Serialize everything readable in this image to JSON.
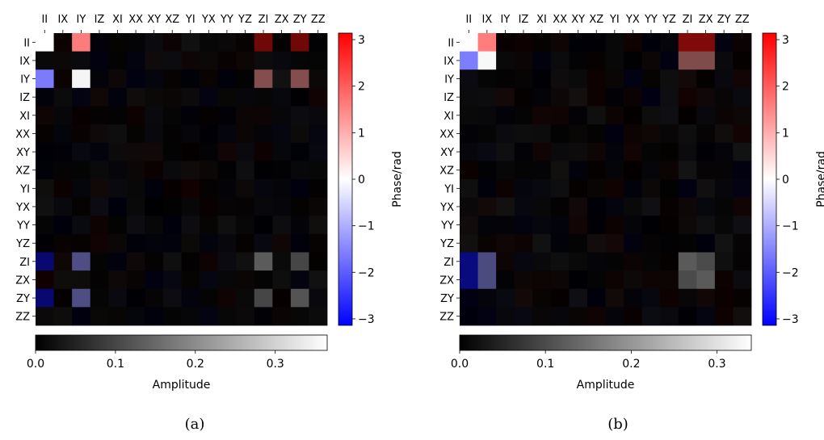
{
  "labels": [
    "II",
    "IX",
    "IY",
    "IZ",
    "XI",
    "XX",
    "XY",
    "XZ",
    "YI",
    "YX",
    "YY",
    "YZ",
    "ZI",
    "ZX",
    "ZY",
    "ZZ"
  ],
  "colorbars": {
    "phase_label": "Phase/rad",
    "phase_ticks": [
      "3",
      "2",
      "1",
      "0",
      "−1",
      "−2",
      "−3"
    ],
    "amplitude_label": "Amplitude"
  },
  "chart_data": [
    {
      "type": "heatmap",
      "panel_label": "(a)",
      "amp_ticks": [
        "0.0",
        "0.1",
        "0.2",
        "0.3"
      ],
      "amp_max": 0.365,
      "phase_range": [
        -3.14,
        3.14
      ],
      "background_amplitude": 0.015,
      "cells": [
        {
          "r": 0,
          "c": 0,
          "amp": 0.365,
          "phase": 0.0
        },
        {
          "r": 0,
          "c": 2,
          "amp": 0.36,
          "phase": 1.6
        },
        {
          "r": 0,
          "c": 12,
          "amp": 0.16,
          "phase": 2.9
        },
        {
          "r": 0,
          "c": 14,
          "amp": 0.16,
          "phase": 2.9
        },
        {
          "r": 2,
          "c": 0,
          "amp": 0.36,
          "phase": -1.6
        },
        {
          "r": 2,
          "c": 2,
          "amp": 0.35,
          "phase": 0.0
        },
        {
          "r": 2,
          "c": 12,
          "amp": 0.19,
          "phase": 1.3
        },
        {
          "r": 2,
          "c": 14,
          "amp": 0.19,
          "phase": 1.3
        },
        {
          "r": 12,
          "c": 0,
          "amp": 0.16,
          "phase": -2.9
        },
        {
          "r": 12,
          "c": 2,
          "amp": 0.19,
          "phase": -1.3
        },
        {
          "r": 12,
          "c": 12,
          "amp": 0.13,
          "phase": 0.0
        },
        {
          "r": 12,
          "c": 14,
          "amp": 0.1,
          "phase": 0.0
        },
        {
          "r": 14,
          "c": 0,
          "amp": 0.16,
          "phase": -2.9
        },
        {
          "r": 14,
          "c": 2,
          "amp": 0.19,
          "phase": -1.3
        },
        {
          "r": 14,
          "c": 12,
          "amp": 0.1,
          "phase": 0.0
        },
        {
          "r": 14,
          "c": 14,
          "amp": 0.12,
          "phase": 0.0
        }
      ]
    },
    {
      "type": "heatmap",
      "panel_label": "(b)",
      "amp_ticks": [
        "0.0",
        "0.1",
        "0.2",
        "0.3"
      ],
      "amp_max": 0.34,
      "phase_range": [
        -3.14,
        3.14
      ],
      "background_amplitude": 0.015,
      "cells": [
        {
          "r": 0,
          "c": 0,
          "amp": 0.34,
          "phase": 0.0
        },
        {
          "r": 0,
          "c": 1,
          "amp": 0.34,
          "phase": 1.6
        },
        {
          "r": 0,
          "c": 12,
          "amp": 0.17,
          "phase": 2.9
        },
        {
          "r": 0,
          "c": 13,
          "amp": 0.17,
          "phase": 2.9
        },
        {
          "r": 1,
          "c": 0,
          "amp": 0.34,
          "phase": -1.6
        },
        {
          "r": 1,
          "c": 1,
          "amp": 0.33,
          "phase": 0.0
        },
        {
          "r": 1,
          "c": 12,
          "amp": 0.17,
          "phase": 1.3
        },
        {
          "r": 1,
          "c": 13,
          "amp": 0.17,
          "phase": 1.3
        },
        {
          "r": 12,
          "c": 0,
          "amp": 0.17,
          "phase": -2.9
        },
        {
          "r": 12,
          "c": 1,
          "amp": 0.17,
          "phase": -1.3
        },
        {
          "r": 12,
          "c": 12,
          "amp": 0.12,
          "phase": 0.0
        },
        {
          "r": 12,
          "c": 13,
          "amp": 0.1,
          "phase": 0.0
        },
        {
          "r": 13,
          "c": 0,
          "amp": 0.17,
          "phase": -2.9
        },
        {
          "r": 13,
          "c": 1,
          "amp": 0.17,
          "phase": -1.3
        },
        {
          "r": 13,
          "c": 12,
          "amp": 0.1,
          "phase": 0.0
        },
        {
          "r": 13,
          "c": 13,
          "amp": 0.12,
          "phase": 0.0
        }
      ]
    }
  ]
}
